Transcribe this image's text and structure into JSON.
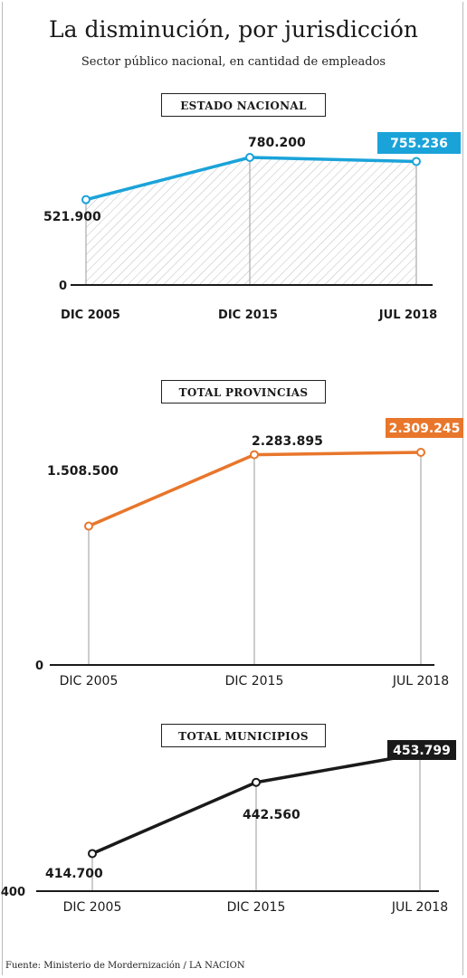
{
  "header": {
    "title": "La disminución, por jurisdicción",
    "subtitle": "Sector público nacional, en cantidad de empleados"
  },
  "footer": {
    "source": "Fuente: Ministerio de Mordernización / LA NACION"
  },
  "colors": {
    "nacional": "#1aa3d9",
    "provincias": "#e8762b",
    "municipios": "#1a1a1a"
  },
  "chart_data": [
    {
      "type": "line",
      "title": "ESTADO NACIONAL",
      "categories": [
        "DIC 2005",
        "DIC 2015",
        "JUL 2018"
      ],
      "values": [
        521900,
        780200,
        755236
      ],
      "value_labels": [
        "521.900",
        "780.200",
        "755.236"
      ],
      "y_baseline_label": "0",
      "ylim": [
        0,
        780200
      ],
      "color": "#1aa3d9",
      "hatched_area": true,
      "highlight_last": true
    },
    {
      "type": "line",
      "title": "TOTAL PROVINCIAS",
      "categories": [
        "DIC 2005",
        "DIC 2015",
        "JUL 2018"
      ],
      "values": [
        1508500,
        2283895,
        2309245
      ],
      "value_labels": [
        "1.508.500",
        "2.283.895",
        "2.309.245"
      ],
      "y_baseline_label": "0",
      "ylim": [
        0,
        2309245
      ],
      "color": "#e8762b",
      "hatched_area": false,
      "highlight_last": true
    },
    {
      "type": "line",
      "title": "TOTAL MUNICIPIOS",
      "categories": [
        "DIC 2005",
        "DIC 2015",
        "JUL 2018"
      ],
      "values": [
        414700,
        442560,
        453799
      ],
      "value_labels": [
        "414.700",
        "442.560",
        "453.799"
      ],
      "y_baseline_label": "400",
      "ylim": [
        400000,
        453799
      ],
      "color": "#1a1a1a",
      "hatched_area": false,
      "highlight_last": true
    }
  ]
}
